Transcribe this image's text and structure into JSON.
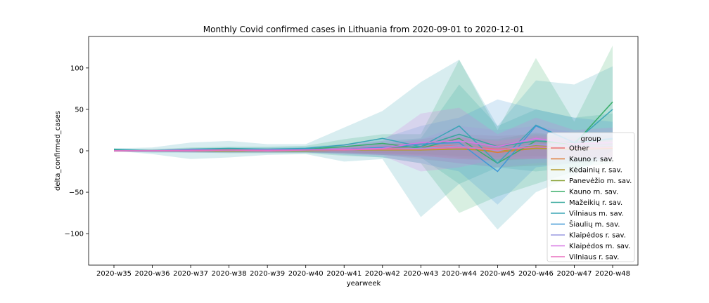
{
  "chart_data": {
    "type": "line",
    "title": "Monthly Covid confirmed cases in Lithuania from 2020-09-01 to 2020-12-01",
    "xlabel": "yearweek",
    "ylabel": "delta_confirmed_cases",
    "ylim": [
      -138,
      138
    ],
    "yticks": [
      -100,
      -50,
      0,
      50,
      100
    ],
    "ytick_labels": [
      "−100",
      "−50",
      "0",
      "50",
      "100"
    ],
    "categories": [
      "2020-w35",
      "2020-w36",
      "2020-w37",
      "2020-w38",
      "2020-w39",
      "2020-w40",
      "2020-w41",
      "2020-w42",
      "2020-w43",
      "2020-w44",
      "2020-w45",
      "2020-w46",
      "2020-w47",
      "2020-w48"
    ],
    "legend": {
      "title": "group",
      "placement": "lower right"
    },
    "series": [
      {
        "name": "Other",
        "color": "#e8737a",
        "values": [
          1,
          0,
          0,
          0,
          1,
          1,
          2,
          3,
          5,
          6,
          2,
          5,
          4,
          5
        ],
        "ci_low": [
          0,
          -1,
          -2,
          -2,
          -2,
          -2,
          -3,
          -5,
          -10,
          -15,
          -20,
          -18,
          -15,
          -12
        ],
        "ci_high": [
          2,
          1,
          2,
          2,
          3,
          3,
          5,
          8,
          14,
          20,
          18,
          20,
          18,
          18
        ]
      },
      {
        "name": "Kauno r. sav.",
        "color": "#e07b38",
        "values": [
          0,
          0,
          0,
          1,
          0,
          1,
          1,
          2,
          1,
          4,
          -2,
          3,
          2,
          3
        ],
        "ci_low": [
          -1,
          -1,
          -1,
          -1,
          -1,
          -1,
          -2,
          -3,
          -5,
          -8,
          -12,
          -8,
          -8,
          -6
        ],
        "ci_high": [
          1,
          1,
          1,
          2,
          2,
          2,
          3,
          5,
          6,
          10,
          8,
          12,
          10,
          10
        ]
      },
      {
        "name": "Kėdainių r. sav.",
        "color": "#b59a2e",
        "values": [
          0,
          0,
          0,
          0,
          0,
          0,
          1,
          1,
          1,
          2,
          0,
          3,
          2,
          4
        ],
        "ci_low": [
          -1,
          -1,
          -1,
          -1,
          -1,
          -1,
          -2,
          -3,
          -4,
          -6,
          -8,
          -6,
          -6,
          -6
        ],
        "ci_high": [
          1,
          1,
          1,
          1,
          1,
          2,
          3,
          5,
          6,
          10,
          8,
          12,
          10,
          12
        ]
      },
      {
        "name": "Panevėžio m. sav.",
        "color": "#8fa63e",
        "values": [
          0,
          0,
          0,
          1,
          0,
          0,
          1,
          2,
          2,
          4,
          1,
          6,
          3,
          5
        ],
        "ci_low": [
          -1,
          -1,
          -1,
          -2,
          -2,
          -2,
          -3,
          -5,
          -6,
          -10,
          -12,
          -10,
          -10,
          -10
        ],
        "ci_high": [
          1,
          1,
          2,
          3,
          2,
          2,
          4,
          8,
          10,
          16,
          14,
          22,
          16,
          20
        ]
      },
      {
        "name": "Kauno m. sav.",
        "color": "#3aad6a",
        "values": [
          1,
          0,
          1,
          2,
          1,
          2,
          5,
          9,
          3,
          15,
          -15,
          12,
          8,
          59
        ],
        "ci_low": [
          -1,
          -2,
          -2,
          -3,
          -3,
          -3,
          -6,
          -8,
          -15,
          -75,
          -55,
          -40,
          -25,
          0
        ],
        "ci_high": [
          2,
          2,
          4,
          5,
          5,
          6,
          14,
          20,
          20,
          110,
          25,
          112,
          35,
          127
        ]
      },
      {
        "name": "Mažeikių r. sav.",
        "color": "#36a89c",
        "values": [
          0,
          0,
          0,
          1,
          1,
          1,
          2,
          4,
          5,
          20,
          5,
          12,
          10,
          14
        ],
        "ci_low": [
          -1,
          -1,
          -2,
          -2,
          -2,
          -2,
          -3,
          -5,
          -8,
          -40,
          -20,
          -25,
          -20,
          -15
        ],
        "ci_high": [
          1,
          1,
          2,
          3,
          3,
          4,
          6,
          12,
          15,
          80,
          30,
          50,
          40,
          45
        ]
      },
      {
        "name": "Vilniaus m. sav.",
        "color": "#3aa6b5",
        "values": [
          2,
          0,
          2,
          3,
          2,
          3,
          7,
          15,
          5,
          30,
          -15,
          31,
          10,
          50
        ],
        "ci_low": [
          0,
          -4,
          -10,
          -8,
          -5,
          -4,
          -13,
          -10,
          -80,
          -40,
          -95,
          -50,
          -30,
          0
        ],
        "ci_high": [
          3,
          4,
          10,
          12,
          8,
          8,
          28,
          48,
          83,
          110,
          30,
          85,
          80,
          102
        ]
      },
      {
        "name": "Šiaulių m. sav.",
        "color": "#3f97d6",
        "values": [
          0,
          0,
          1,
          1,
          1,
          2,
          2,
          4,
          8,
          10,
          -25,
          30,
          10,
          15
        ],
        "ci_low": [
          -1,
          -2,
          -2,
          -2,
          -2,
          -2,
          -5,
          -8,
          -15,
          -25,
          -65,
          -20,
          -15,
          -10
        ],
        "ci_high": [
          1,
          2,
          3,
          4,
          4,
          5,
          8,
          15,
          30,
          40,
          62,
          50,
          40,
          35
        ]
      },
      {
        "name": "Klaipėdos r. sav.",
        "color": "#9a9ae0",
        "values": [
          0,
          0,
          0,
          1,
          0,
          1,
          1,
          2,
          3,
          6,
          0,
          8,
          5,
          6
        ],
        "ci_low": [
          -1,
          -1,
          -1,
          -1,
          -1,
          -1,
          -3,
          -5,
          -8,
          -15,
          -20,
          -15,
          -12,
          -12
        ],
        "ci_high": [
          1,
          1,
          2,
          2,
          2,
          2,
          5,
          9,
          14,
          30,
          25,
          30,
          22,
          22
        ]
      },
      {
        "name": "Klaipėdos m. sav.",
        "color": "#d774e3",
        "values": [
          0,
          0,
          1,
          1,
          1,
          1,
          2,
          3,
          10,
          12,
          5,
          15,
          8,
          10
        ],
        "ci_low": [
          -1,
          -1,
          -2,
          -2,
          -2,
          -2,
          -4,
          -6,
          -25,
          -20,
          -10,
          -10,
          -10,
          -10
        ],
        "ci_high": [
          1,
          1,
          3,
          3,
          3,
          3,
          8,
          12,
          45,
          52,
          20,
          40,
          25,
          28
        ]
      },
      {
        "name": "Vilniaus r. sav.",
        "color": "#e86fbd",
        "values": [
          0,
          0,
          0,
          1,
          0,
          1,
          1,
          2,
          2,
          4,
          1,
          5,
          3,
          4
        ],
        "ci_low": [
          -1,
          -1,
          -1,
          -1,
          -1,
          -1,
          -2,
          -4,
          -6,
          -10,
          -10,
          -10,
          -8,
          -8
        ],
        "ci_high": [
          1,
          1,
          1,
          2,
          2,
          2,
          4,
          7,
          10,
          16,
          12,
          18,
          14,
          14
        ]
      }
    ]
  }
}
